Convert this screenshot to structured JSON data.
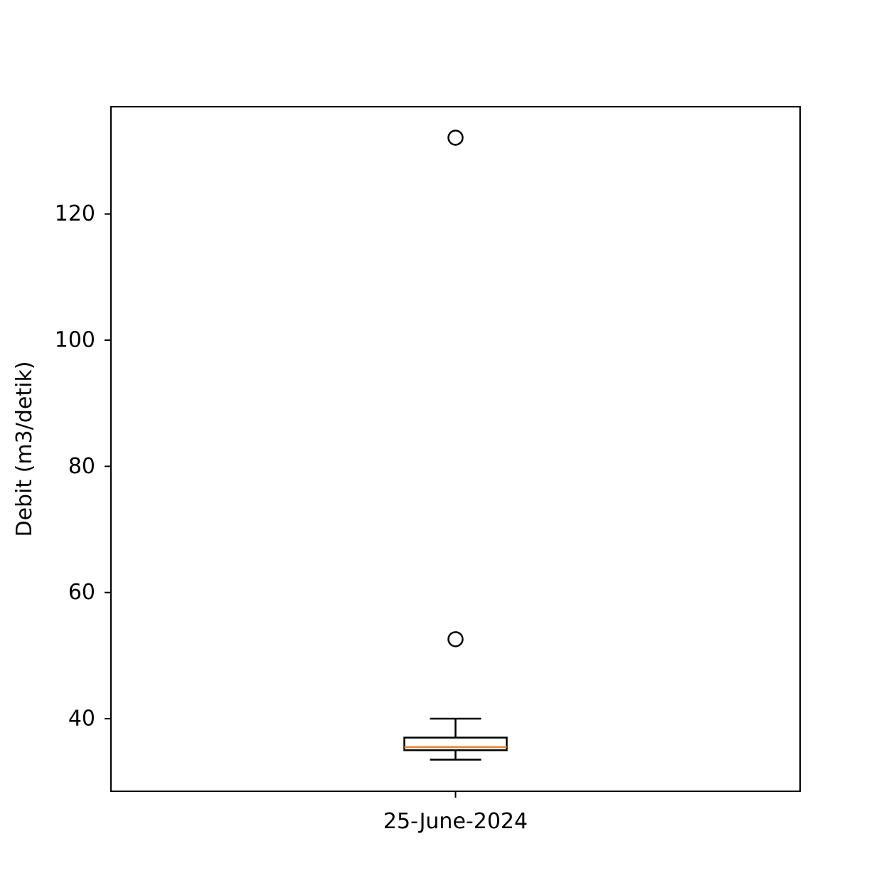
{
  "chart_data": {
    "type": "boxplot",
    "categories": [
      "25-June-2024"
    ],
    "ylabel": "Debit (m3/detik)",
    "ylim": [
      28.5,
      137
    ],
    "yticks": [
      40,
      60,
      80,
      100,
      120
    ],
    "grid": false,
    "boxes": [
      {
        "category": "25-June-2024",
        "whisker_low": 33.5,
        "q1": 35.0,
        "median": 35.5,
        "q3": 37.0,
        "whisker_high": 40.0,
        "outliers": [
          52.6,
          132.1
        ]
      }
    ],
    "colors": {
      "box": "#000000",
      "median": "#ff7f0e",
      "outlier": "#000000"
    }
  }
}
